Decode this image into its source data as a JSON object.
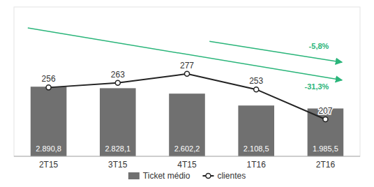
{
  "chart_data": {
    "type": "bar",
    "categories": [
      "2T15",
      "3T15",
      "4T15",
      "1T16",
      "2T16"
    ],
    "series": [
      {
        "name": "Ticket médio",
        "type": "bar",
        "color": "#707070",
        "values": [
          2890.8,
          2828.1,
          2602.2,
          2108.5,
          1985.5
        ],
        "value_labels": [
          "2.890,8",
          "2.828,1",
          "2.602,2",
          "2.108,5",
          "1.985,5"
        ]
      },
      {
        "name": "clientes",
        "type": "line",
        "axis": "y2",
        "color": "#222222",
        "marker": "circle",
        "values": [
          256,
          263,
          277,
          253,
          207
        ]
      }
    ],
    "ylim": [
      0,
      6200
    ],
    "y2lim": [
      150,
      380
    ],
    "tick_labels": "x",
    "data_labels": true,
    "legend": "bottom",
    "annotations": [
      {
        "text": "-31,3%",
        "color": "#2ab57a"
      },
      {
        "text": "-5,8%",
        "color": "#2ab57a"
      }
    ]
  }
}
